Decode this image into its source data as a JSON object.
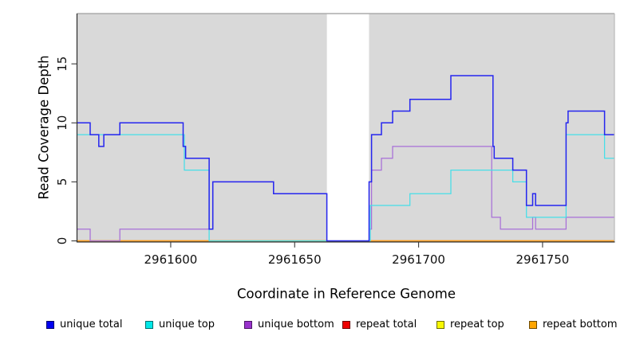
{
  "chart_data": {
    "type": "line",
    "title": "",
    "xlabel": "Coordinate in Reference Genome",
    "ylabel": "Read Coverage Depth",
    "xlim": [
      2961562.2,
      2961779
    ],
    "ylim": [
      0,
      19.3
    ],
    "x_ticks": [
      2961600,
      2961650,
      2961700,
      2961750
    ],
    "y_ticks": [
      0,
      5,
      10,
      15
    ],
    "grid": false,
    "plot_background": "#d9d9d9",
    "outer_background": "#ffffff",
    "legend_position": "bottom",
    "masked_region": {
      "x0": 2961663,
      "x1": 2961680,
      "color": "#ffffff"
    },
    "series": [
      {
        "name": "repeat total",
        "color": "#dd0000",
        "above_mask": false,
        "steps": [
          [
            2961562.2,
            0
          ]
        ],
        "x_end": 2961779
      },
      {
        "name": "repeat top",
        "color": "#f0f000",
        "above_mask": false,
        "steps": [
          [
            2961562.2,
            0
          ]
        ],
        "x_end": 2961779
      },
      {
        "name": "repeat bottom",
        "color": "#ff9e1b",
        "above_mask": false,
        "steps": [
          [
            2961562.2,
            0
          ]
        ],
        "x_end": 2961779
      },
      {
        "name": "unique bottom",
        "color": "#a86fd8",
        "above_mask": false,
        "steps": [
          [
            2961562.2,
            1
          ],
          [
            2961567.5,
            0
          ],
          [
            2961579.5,
            1
          ],
          [
            2961617,
            5
          ],
          [
            2961641.5,
            4
          ],
          [
            2961663,
            0
          ],
          [
            2961679.8,
            1
          ],
          [
            2961681,
            6
          ],
          [
            2961685,
            7
          ],
          [
            2961689.5,
            8
          ],
          [
            2961729.5,
            2
          ],
          [
            2961733,
            1
          ],
          [
            2961746,
            2
          ],
          [
            2961747.2,
            1
          ],
          [
            2961759.5,
            2
          ]
        ],
        "x_end": 2961779
      },
      {
        "name": "unique top",
        "color": "#45dfe8",
        "above_mask": false,
        "steps": [
          [
            2961562.2,
            9
          ],
          [
            2961605.5,
            6
          ],
          [
            2961615.5,
            0
          ],
          [
            2961680.5,
            3
          ],
          [
            2961696.5,
            4
          ],
          [
            2961713,
            6
          ],
          [
            2961738,
            5
          ],
          [
            2961743.5,
            2
          ],
          [
            2961759.5,
            9
          ],
          [
            2961775,
            7
          ]
        ],
        "x_end": 2961779
      },
      {
        "name": "unique total",
        "color": "#2525ef",
        "above_mask": true,
        "steps": [
          [
            2961562.2,
            10
          ],
          [
            2961567.5,
            9
          ],
          [
            2961571,
            8
          ],
          [
            2961573,
            9
          ],
          [
            2961579.5,
            10
          ],
          [
            2961605,
            8
          ],
          [
            2961606,
            7
          ],
          [
            2961615.5,
            1
          ],
          [
            2961617,
            5
          ],
          [
            2961641.5,
            4
          ],
          [
            2961663,
            0
          ],
          [
            2961680,
            5
          ],
          [
            2961681,
            9
          ],
          [
            2961685,
            10
          ],
          [
            2961689.5,
            11
          ],
          [
            2961696.5,
            12
          ],
          [
            2961713,
            14
          ],
          [
            2961730,
            8
          ],
          [
            2961730.5,
            7
          ],
          [
            2961738,
            6
          ],
          [
            2961743.5,
            3
          ],
          [
            2961746,
            4
          ],
          [
            2961747.2,
            3
          ],
          [
            2961759.5,
            10
          ],
          [
            2961760.3,
            11
          ],
          [
            2961775,
            9
          ]
        ],
        "x_end": 2961779
      }
    ],
    "legend": [
      {
        "label": "unique total",
        "fill": "#0000f0",
        "edge": "#00006e"
      },
      {
        "label": "unique top",
        "fill": "#00e8e8",
        "edge": "#006e6e"
      },
      {
        "label": "unique bottom",
        "fill": "#9932cc",
        "edge": "#4b1766"
      },
      {
        "label": "repeat total",
        "fill": "#ee0000",
        "edge": "#6e0000"
      },
      {
        "label": "repeat top",
        "fill": "#f8f800",
        "edge": "#6e6e00"
      },
      {
        "label": "repeat bottom",
        "fill": "#ffa500",
        "edge": "#6e4a00"
      }
    ]
  }
}
